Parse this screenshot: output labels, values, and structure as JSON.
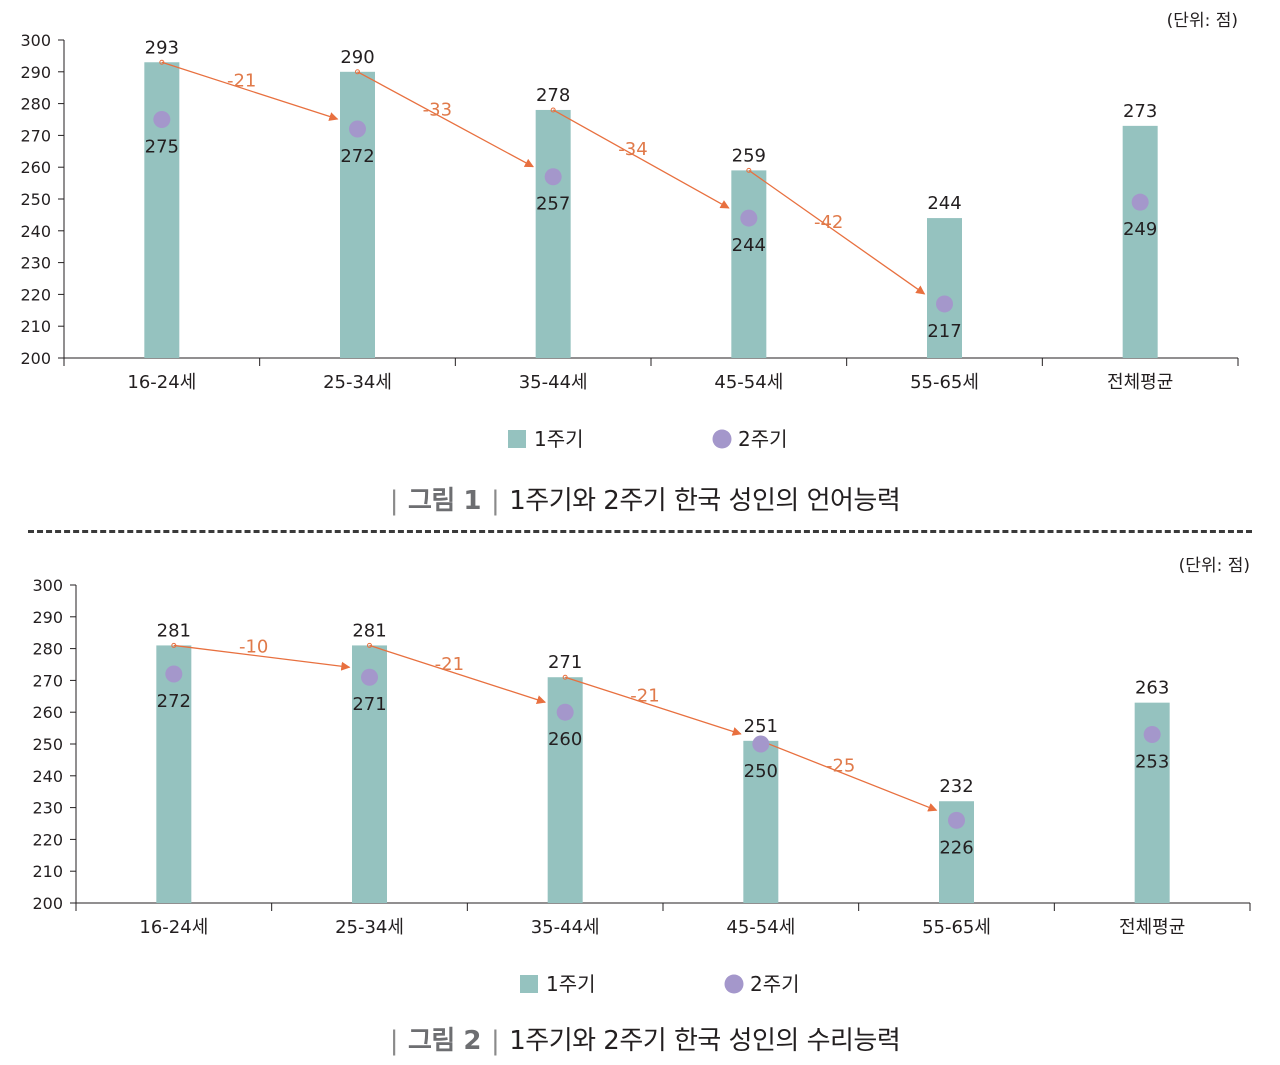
{
  "charts": [
    {
      "caption_fig": "그림 1",
      "caption_text": "1주기와 2주기 한국 성인의 언어능력"
    },
    {
      "caption_fig": "그림 2",
      "caption_text": "1주기와 2주기 한국 성인의 수리능력"
    }
  ],
  "chart_data": [
    {
      "type": "bar",
      "unit_label": "(단위: 점)",
      "categories": [
        "16-24세",
        "25-34세",
        "35-44세",
        "45-54세",
        "55-65세",
        "전체평균"
      ],
      "series": [
        {
          "name": "1주기",
          "kind": "bar",
          "values": [
            293,
            290,
            278,
            259,
            244,
            273
          ]
        },
        {
          "name": "2주기",
          "kind": "dot",
          "values": [
            275,
            272,
            257,
            244,
            217,
            249
          ]
        }
      ],
      "differences": [
        "-21",
        "-33",
        "-34",
        "-42"
      ],
      "ylim": [
        200,
        300
      ],
      "yticks": [
        200,
        210,
        220,
        230,
        240,
        250,
        260,
        270,
        280,
        290,
        300
      ],
      "colors": {
        "bar": "#95c2bf",
        "dot": "#a497cb",
        "arrow": "#e8703f",
        "diff_text": "#e07a4a"
      },
      "legend_position": "bottom-center",
      "grid": false
    },
    {
      "type": "bar",
      "unit_label": "(단위: 점)",
      "categories": [
        "16-24세",
        "25-34세",
        "35-44세",
        "45-54세",
        "55-65세",
        "전체평균"
      ],
      "series": [
        {
          "name": "1주기",
          "kind": "bar",
          "values": [
            281,
            281,
            271,
            251,
            232,
            263
          ]
        },
        {
          "name": "2주기",
          "kind": "dot",
          "values": [
            272,
            271,
            260,
            250,
            226,
            253
          ]
        }
      ],
      "differences": [
        "-10",
        "-21",
        "-21",
        "-25"
      ],
      "ylim": [
        200,
        300
      ],
      "yticks": [
        200,
        210,
        220,
        230,
        240,
        250,
        260,
        270,
        280,
        290,
        300
      ],
      "colors": {
        "bar": "#95c2bf",
        "dot": "#a497cb",
        "arrow": "#e8703f",
        "diff_text": "#e07a4a"
      },
      "legend_position": "bottom-center",
      "grid": false
    }
  ]
}
